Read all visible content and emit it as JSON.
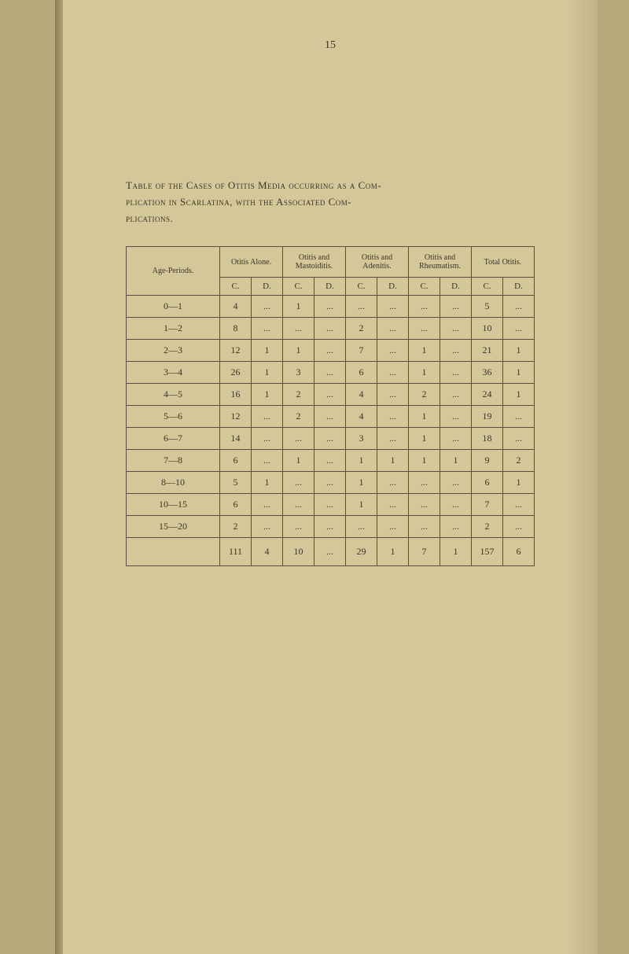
{
  "page_number": "15",
  "caption": {
    "line1_prefix": "Table of the Cases of Otitis Media occurring as a Com-",
    "line2": "plication in Scarlatina, with the Associated Com-",
    "line3": "plications."
  },
  "table": {
    "headers": {
      "age_periods": "Age-Periods.",
      "otitis_alone": "Otitis Alone.",
      "otitis_mastoiditis": "Otitis and Mastoiditis.",
      "otitis_adenitis": "Otitis and Adenitis.",
      "otitis_rheumatism": "Otitis and Rheumatism.",
      "total_otitis": "Total Otitis.",
      "c": "C.",
      "d": "D."
    },
    "rows": [
      {
        "age": "0—1",
        "oa_c": "4",
        "oa_d": "...",
        "om_c": "1",
        "om_d": "...",
        "oad_c": "...",
        "oad_d": "...",
        "or_c": "...",
        "or_d": "...",
        "to_c": "5",
        "to_d": "..."
      },
      {
        "age": "1—2",
        "oa_c": "8",
        "oa_d": "...",
        "om_c": "...",
        "om_d": "...",
        "oad_c": "2",
        "oad_d": "...",
        "or_c": "...",
        "or_d": "...",
        "to_c": "10",
        "to_d": "..."
      },
      {
        "age": "2—3",
        "oa_c": "12",
        "oa_d": "1",
        "om_c": "1",
        "om_d": "...",
        "oad_c": "7",
        "oad_d": "...",
        "or_c": "1",
        "or_d": "...",
        "to_c": "21",
        "to_d": "1"
      },
      {
        "age": "3—4",
        "oa_c": "26",
        "oa_d": "1",
        "om_c": "3",
        "om_d": "...",
        "oad_c": "6",
        "oad_d": "...",
        "or_c": "1",
        "or_d": "...",
        "to_c": "36",
        "to_d": "1"
      },
      {
        "age": "4—5",
        "oa_c": "16",
        "oa_d": "1",
        "om_c": "2",
        "om_d": "...",
        "oad_c": "4",
        "oad_d": "...",
        "or_c": "2",
        "or_d": "...",
        "to_c": "24",
        "to_d": "1"
      },
      {
        "age": "5—6",
        "oa_c": "12",
        "oa_d": "...",
        "om_c": "2",
        "om_d": "...",
        "oad_c": "4",
        "oad_d": "...",
        "or_c": "1",
        "or_d": "...",
        "to_c": "19",
        "to_d": "..."
      },
      {
        "age": "6—7",
        "oa_c": "14",
        "oa_d": "...",
        "om_c": "...",
        "om_d": "...",
        "oad_c": "3",
        "oad_d": "...",
        "or_c": "1",
        "or_d": "...",
        "to_c": "18",
        "to_d": "..."
      },
      {
        "age": "7—8",
        "oa_c": "6",
        "oa_d": "...",
        "om_c": "1",
        "om_d": "...",
        "oad_c": "1",
        "oad_d": "1",
        "or_c": "1",
        "or_d": "1",
        "to_c": "9",
        "to_d": "2"
      },
      {
        "age": "8—10",
        "oa_c": "5",
        "oa_d": "1",
        "om_c": "...",
        "om_d": "...",
        "oad_c": "1",
        "oad_d": "...",
        "or_c": "...",
        "or_d": "...",
        "to_c": "6",
        "to_d": "1"
      },
      {
        "age": "10—15",
        "oa_c": "6",
        "oa_d": "...",
        "om_c": "...",
        "om_d": "...",
        "oad_c": "1",
        "oad_d": "...",
        "or_c": "...",
        "or_d": "...",
        "to_c": "7",
        "to_d": "..."
      },
      {
        "age": "15—20",
        "oa_c": "2",
        "oa_d": "...",
        "om_c": "...",
        "om_d": "...",
        "oad_c": "...",
        "oad_d": "...",
        "or_c": "...",
        "or_d": "...",
        "to_c": "2",
        "to_d": "..."
      }
    ],
    "totals": {
      "age": "",
      "oa_c": "111",
      "oa_d": "4",
      "om_c": "10",
      "om_d": "...",
      "oad_c": "29",
      "oad_d": "1",
      "or_c": "7",
      "or_d": "1",
      "to_c": "157",
      "to_d": "6"
    }
  },
  "colors": {
    "background": "#b8a97d",
    "page": "#d4c89a",
    "text": "#3a3428",
    "border": "#5a4f3a"
  }
}
